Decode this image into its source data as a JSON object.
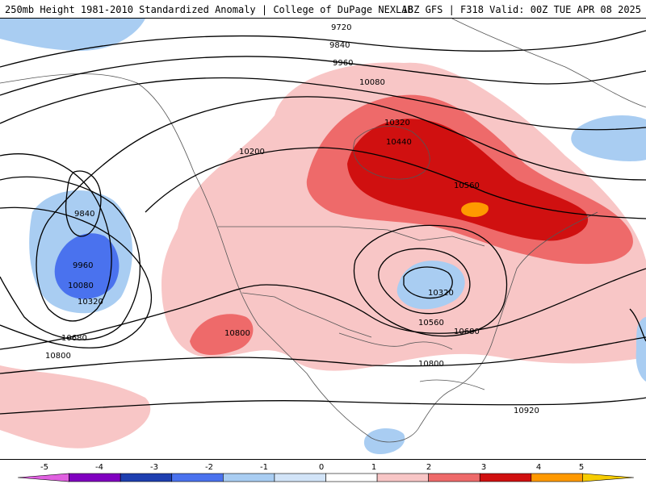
{
  "header": {
    "title": "250mb Height 1981-2010 Standardized Anomaly | College of DuPage NEXLAB",
    "run_info": "18Z GFS | F318 Valid: 00Z TUE APR 08 2025"
  },
  "contour_labels": [
    "9720",
    "9840",
    "9960",
    "10080",
    "10320",
    "10440",
    "10560",
    "10200",
    "9840",
    "9960",
    "10080",
    "10320",
    "10680",
    "10800",
    "10800",
    "10320",
    "10560",
    "10680",
    "10800",
    "10920"
  ],
  "colorbar": {
    "ticks": [
      "-5",
      "-4",
      "-3",
      "-2",
      "-1",
      "0",
      "1",
      "2",
      "3",
      "4",
      "5"
    ],
    "colors": [
      "#e060e0",
      "#8000c0",
      "#1e3fb0",
      "#4a72ee",
      "#a9cdf2",
      "#d2e4f8",
      "#ffffff",
      "#f8c6c6",
      "#ee6a6a",
      "#d01010",
      "#ff9900",
      "#f6cc00"
    ]
  }
}
